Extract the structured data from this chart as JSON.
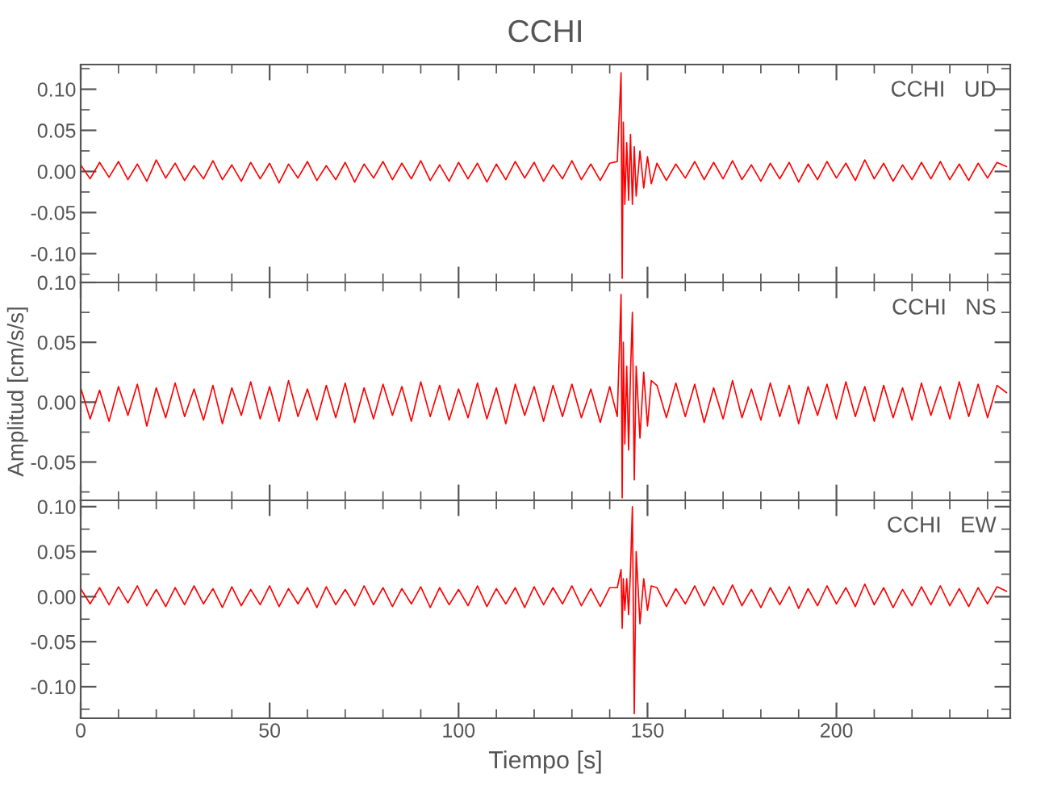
{
  "chart_data": [
    {
      "type": "line",
      "title": "CCHI",
      "annotations": [
        "CCHI   UD"
      ],
      "tick_labels": "y",
      "grid": false,
      "legend": false,
      "xlim": [
        0,
        246
      ],
      "ylim": [
        -0.135,
        0.13
      ],
      "xticks": [
        0,
        {
          "value": 10,
          "label": null
        },
        {
          "value": 20,
          "label": null
        },
        {
          "value": 30,
          "label": null
        },
        {
          "value": 40,
          "label": null
        },
        50,
        {
          "value": 60,
          "label": null
        },
        {
          "value": 70,
          "label": null
        },
        {
          "value": 80,
          "label": null
        },
        {
          "value": 90,
          "label": null
        },
        100,
        {
          "value": 110,
          "label": null
        },
        {
          "value": 120,
          "label": null
        },
        {
          "value": 130,
          "label": null
        },
        {
          "value": 140,
          "label": null
        },
        150,
        {
          "value": 160,
          "label": null
        },
        {
          "value": 170,
          "label": null
        },
        {
          "value": 180,
          "label": null
        },
        {
          "value": 190,
          "label": null
        },
        200,
        {
          "value": 210,
          "label": null
        },
        {
          "value": 220,
          "label": null
        },
        {
          "value": 230,
          "label": null
        },
        {
          "value": 240,
          "label": null
        }
      ],
      "yticks": [
        {
          "value": -0.125,
          "label": null
        },
        {
          "value": -0.1,
          "label": "-0.10"
        },
        {
          "value": -0.075,
          "label": null
        },
        {
          "value": -0.05,
          "label": "-0.05"
        },
        {
          "value": -0.025,
          "label": null
        },
        {
          "value": 0,
          "label": "0.00"
        },
        {
          "value": 0.025,
          "label": null
        },
        {
          "value": 0.05,
          "label": "0.05"
        },
        {
          "value": 0.075,
          "label": null
        },
        {
          "value": 0.1,
          "label": "0.10"
        },
        {
          "value": 0.125,
          "label": null
        }
      ],
      "x": [
        0,
        2.5,
        5,
        7.5,
        10,
        12.5,
        15,
        17.5,
        20,
        22.5,
        25,
        27.5,
        30,
        32.5,
        35,
        37.5,
        40,
        42.5,
        45,
        47.5,
        50,
        52.5,
        55,
        57.5,
        60,
        62.5,
        65,
        67.5,
        70,
        72.5,
        75,
        77.5,
        80,
        82.5,
        85,
        87.5,
        90,
        92.5,
        95,
        97.5,
        100,
        102.5,
        105,
        107.5,
        110,
        112.5,
        115,
        117.5,
        120,
        122.5,
        125,
        127.5,
        130,
        132.5,
        135,
        137.5,
        140,
        142,
        143,
        143.3,
        143.6,
        144,
        144.5,
        145,
        145.5,
        146,
        146.5,
        147,
        148,
        149,
        150,
        151,
        152.5,
        155,
        157.5,
        160,
        162.5,
        165,
        167.5,
        170,
        172.5,
        175,
        177.5,
        180,
        182.5,
        185,
        187.5,
        190,
        192.5,
        195,
        197.5,
        200,
        202.5,
        205,
        207.5,
        210,
        212.5,
        215,
        217.5,
        220,
        222.5,
        225,
        227.5,
        230,
        232.5,
        235,
        237.5,
        240,
        242.5,
        245
      ],
      "series": [
        {
          "color": "#ff0000",
          "values": [
            0.008,
            -0.009,
            0.011,
            -0.007,
            0.012,
            -0.01,
            0.009,
            -0.012,
            0.014,
            -0.008,
            0.01,
            -0.011,
            0.007,
            -0.009,
            0.013,
            -0.01,
            0.008,
            -0.012,
            0.011,
            -0.009,
            0.01,
            -0.014,
            0.009,
            -0.008,
            0.012,
            -0.011,
            0.007,
            -0.01,
            0.011,
            -0.013,
            0.009,
            -0.008,
            0.012,
            -0.01,
            0.01,
            -0.009,
            0.013,
            -0.011,
            0.008,
            -0.012,
            0.011,
            -0.009,
            0.01,
            -0.013,
            0.009,
            -0.01,
            0.012,
            -0.008,
            0.011,
            -0.012,
            0.008,
            -0.009,
            0.013,
            -0.01,
            0.009,
            -0.011,
            0.01,
            0.012,
            0.12,
            -0.13,
            0.06,
            -0.04,
            0.035,
            -0.035,
            0.045,
            -0.04,
            0.03,
            -0.03,
            0.025,
            -0.02,
            0.018,
            -0.015,
            0.01,
            -0.011,
            0.009,
            -0.008,
            0.012,
            -0.01,
            0.011,
            -0.009,
            0.013,
            -0.01,
            0.008,
            -0.012,
            0.01,
            -0.009,
            0.011,
            -0.013,
            0.009,
            -0.01,
            0.012,
            -0.008,
            0.01,
            -0.011,
            0.014,
            -0.009,
            0.01,
            -0.012,
            0.008,
            -0.01,
            0.011,
            -0.009,
            0.012,
            -0.01,
            0.009,
            -0.011,
            0.01,
            -0.008,
            0.011,
            0.006
          ]
        }
      ]
    },
    {
      "type": "line",
      "ylabel": "Amplitud [cm/s/s]",
      "annotations": [
        "CCHI   NS"
      ],
      "tick_labels": "y",
      "grid": false,
      "legend": false,
      "xlim": [
        0,
        246
      ],
      "ylim": [
        -0.082,
        0.1
      ],
      "xticks": [
        0,
        {
          "value": 10,
          "label": null
        },
        {
          "value": 20,
          "label": null
        },
        {
          "value": 30,
          "label": null
        },
        {
          "value": 40,
          "label": null
        },
        50,
        {
          "value": 60,
          "label": null
        },
        {
          "value": 70,
          "label": null
        },
        {
          "value": 80,
          "label": null
        },
        {
          "value": 90,
          "label": null
        },
        100,
        {
          "value": 110,
          "label": null
        },
        {
          "value": 120,
          "label": null
        },
        {
          "value": 130,
          "label": null
        },
        {
          "value": 140,
          "label": null
        },
        150,
        {
          "value": 160,
          "label": null
        },
        {
          "value": 170,
          "label": null
        },
        {
          "value": 180,
          "label": null
        },
        {
          "value": 190,
          "label": null
        },
        200,
        {
          "value": 210,
          "label": null
        },
        {
          "value": 220,
          "label": null
        },
        {
          "value": 230,
          "label": null
        },
        {
          "value": 240,
          "label": null
        }
      ],
      "yticks": [
        {
          "value": -0.075,
          "label": null
        },
        {
          "value": -0.05,
          "label": "-0.05"
        },
        {
          "value": -0.025,
          "label": null
        },
        {
          "value": 0,
          "label": "0.00"
        },
        {
          "value": 0.025,
          "label": null
        },
        {
          "value": 0.05,
          "label": "0.05"
        },
        {
          "value": 0.075,
          "label": null
        },
        {
          "value": 0.1,
          "label": "0.10"
        }
      ],
      "x": [
        0,
        2.5,
        5,
        7.5,
        10,
        12.5,
        15,
        17.5,
        20,
        22.5,
        25,
        27.5,
        30,
        32.5,
        35,
        37.5,
        40,
        42.5,
        45,
        47.5,
        50,
        52.5,
        55,
        57.5,
        60,
        62.5,
        65,
        67.5,
        70,
        72.5,
        75,
        77.5,
        80,
        82.5,
        85,
        87.5,
        90,
        92.5,
        95,
        97.5,
        100,
        102.5,
        105,
        107.5,
        110,
        112.5,
        115,
        117.5,
        120,
        122.5,
        125,
        127.5,
        130,
        132.5,
        135,
        137.5,
        140,
        142,
        143,
        143.3,
        143.6,
        144,
        144.5,
        145,
        145.5,
        146,
        146.5,
        147,
        148,
        149,
        150,
        151,
        152.5,
        155,
        157.5,
        160,
        162.5,
        165,
        167.5,
        170,
        172.5,
        175,
        177.5,
        180,
        182.5,
        185,
        187.5,
        190,
        192.5,
        195,
        197.5,
        200,
        202.5,
        205,
        207.5,
        210,
        212.5,
        215,
        217.5,
        220,
        222.5,
        225,
        227.5,
        230,
        232.5,
        235,
        237.5,
        240,
        242.5,
        245
      ],
      "series": [
        {
          "color": "#ff0000",
          "values": [
            0.012,
            -0.014,
            0.01,
            -0.016,
            0.013,
            -0.011,
            0.015,
            -0.02,
            0.012,
            -0.013,
            0.016,
            -0.012,
            0.011,
            -0.015,
            0.014,
            -0.018,
            0.012,
            -0.011,
            0.017,
            -0.014,
            0.013,
            -0.016,
            0.018,
            -0.012,
            0.011,
            -0.015,
            0.014,
            -0.013,
            0.016,
            -0.017,
            0.012,
            -0.014,
            0.015,
            -0.011,
            0.013,
            -0.016,
            0.017,
            -0.012,
            0.014,
            -0.015,
            0.011,
            -0.013,
            0.016,
            -0.014,
            0.012,
            -0.018,
            0.015,
            -0.011,
            0.013,
            -0.016,
            0.014,
            -0.012,
            0.015,
            -0.013,
            0.011,
            -0.017,
            0.013,
            -0.012,
            0.09,
            -0.08,
            0.05,
            -0.035,
            0.03,
            -0.04,
            0.025,
            0.075,
            -0.065,
            0.03,
            -0.03,
            0.025,
            -0.02,
            0.018,
            0.014,
            -0.013,
            0.016,
            -0.012,
            0.015,
            -0.017,
            0.012,
            -0.014,
            0.018,
            -0.013,
            0.011,
            -0.015,
            0.016,
            -0.012,
            0.014,
            -0.018,
            0.013,
            -0.011,
            0.015,
            -0.014,
            0.017,
            -0.012,
            0.013,
            -0.016,
            0.014,
            -0.013,
            0.012,
            -0.015,
            0.016,
            -0.011,
            0.013,
            -0.014,
            0.017,
            -0.012,
            0.015,
            -0.013,
            0.014,
            0.008
          ]
        }
      ]
    },
    {
      "type": "line",
      "xlabel": "Tiempo [s]",
      "annotations": [
        "CCHI   EW"
      ],
      "grid": false,
      "legend": false,
      "xlim": [
        0,
        246
      ],
      "ylim": [
        -0.135,
        0.107
      ],
      "xticks": [
        0,
        {
          "value": 10,
          "label": null
        },
        {
          "value": 20,
          "label": null
        },
        {
          "value": 30,
          "label": null
        },
        {
          "value": 40,
          "label": null
        },
        50,
        {
          "value": 60,
          "label": null
        },
        {
          "value": 70,
          "label": null
        },
        {
          "value": 80,
          "label": null
        },
        {
          "value": 90,
          "label": null
        },
        100,
        {
          "value": 110,
          "label": null
        },
        {
          "value": 120,
          "label": null
        },
        {
          "value": 130,
          "label": null
        },
        {
          "value": 140,
          "label": null
        },
        150,
        {
          "value": 160,
          "label": null
        },
        {
          "value": 170,
          "label": null
        },
        {
          "value": 180,
          "label": null
        },
        {
          "value": 190,
          "label": null
        },
        200,
        {
          "value": 210,
          "label": null
        },
        {
          "value": 220,
          "label": null
        },
        {
          "value": 230,
          "label": null
        },
        {
          "value": 240,
          "label": null
        }
      ],
      "yticks": [
        {
          "value": -0.125,
          "label": null
        },
        {
          "value": -0.1,
          "label": "-0.10"
        },
        {
          "value": -0.075,
          "label": null
        },
        {
          "value": -0.05,
          "label": "-0.05"
        },
        {
          "value": -0.025,
          "label": null
        },
        {
          "value": 0,
          "label": "0.00"
        },
        {
          "value": 0.025,
          "label": null
        },
        {
          "value": 0.05,
          "label": "0.05"
        },
        {
          "value": 0.075,
          "label": null
        },
        {
          "value": 0.1,
          "label": "0.10"
        }
      ],
      "x": [
        0,
        2.5,
        5,
        7.5,
        10,
        12.5,
        15,
        17.5,
        20,
        22.5,
        25,
        27.5,
        30,
        32.5,
        35,
        37.5,
        40,
        42.5,
        45,
        47.5,
        50,
        52.5,
        55,
        57.5,
        60,
        62.5,
        65,
        67.5,
        70,
        72.5,
        75,
        77.5,
        80,
        82.5,
        85,
        87.5,
        90,
        92.5,
        95,
        97.5,
        100,
        102.5,
        105,
        107.5,
        110,
        112.5,
        115,
        117.5,
        120,
        122.5,
        125,
        127.5,
        130,
        132.5,
        135,
        137.5,
        140,
        142,
        143,
        143.3,
        143.6,
        144,
        144.5,
        145,
        145.5,
        146,
        146.5,
        147,
        148,
        149,
        150,
        151,
        152.5,
        155,
        157.5,
        160,
        162.5,
        165,
        167.5,
        170,
        172.5,
        175,
        177.5,
        180,
        182.5,
        185,
        187.5,
        190,
        192.5,
        195,
        197.5,
        200,
        202.5,
        205,
        207.5,
        210,
        212.5,
        215,
        217.5,
        220,
        222.5,
        225,
        227.5,
        230,
        232.5,
        235,
        237.5,
        240,
        242.5,
        245
      ],
      "series": [
        {
          "color": "#ff0000",
          "values": [
            0.009,
            -0.008,
            0.01,
            -0.009,
            0.011,
            -0.007,
            0.012,
            -0.01,
            0.008,
            -0.011,
            0.01,
            -0.009,
            0.012,
            -0.008,
            0.009,
            -0.012,
            0.011,
            -0.01,
            0.008,
            -0.009,
            0.012,
            -0.011,
            0.009,
            -0.008,
            0.01,
            -0.012,
            0.011,
            -0.009,
            0.008,
            -0.01,
            0.012,
            -0.009,
            0.01,
            -0.011,
            0.009,
            -0.008,
            0.011,
            -0.012,
            0.01,
            -0.009,
            0.008,
            -0.01,
            0.012,
            -0.011,
            0.009,
            -0.008,
            0.01,
            -0.012,
            0.011,
            -0.009,
            0.01,
            -0.008,
            0.012,
            -0.01,
            0.009,
            -0.011,
            0.01,
            0.01,
            0.03,
            -0.035,
            0.02,
            -0.015,
            0.02,
            -0.02,
            0.03,
            0.1,
            -0.13,
            0.05,
            -0.03,
            0.02,
            -0.015,
            0.012,
            0.01,
            -0.011,
            0.009,
            -0.008,
            0.012,
            -0.01,
            0.011,
            -0.009,
            0.013,
            -0.01,
            0.008,
            -0.012,
            0.01,
            -0.009,
            0.011,
            -0.013,
            0.009,
            -0.01,
            0.012,
            -0.008,
            0.01,
            -0.011,
            0.014,
            -0.009,
            0.01,
            -0.012,
            0.008,
            -0.01,
            0.011,
            -0.009,
            0.012,
            -0.01,
            0.009,
            -0.011,
            0.01,
            -0.008,
            0.011,
            0.006
          ]
        }
      ]
    }
  ]
}
